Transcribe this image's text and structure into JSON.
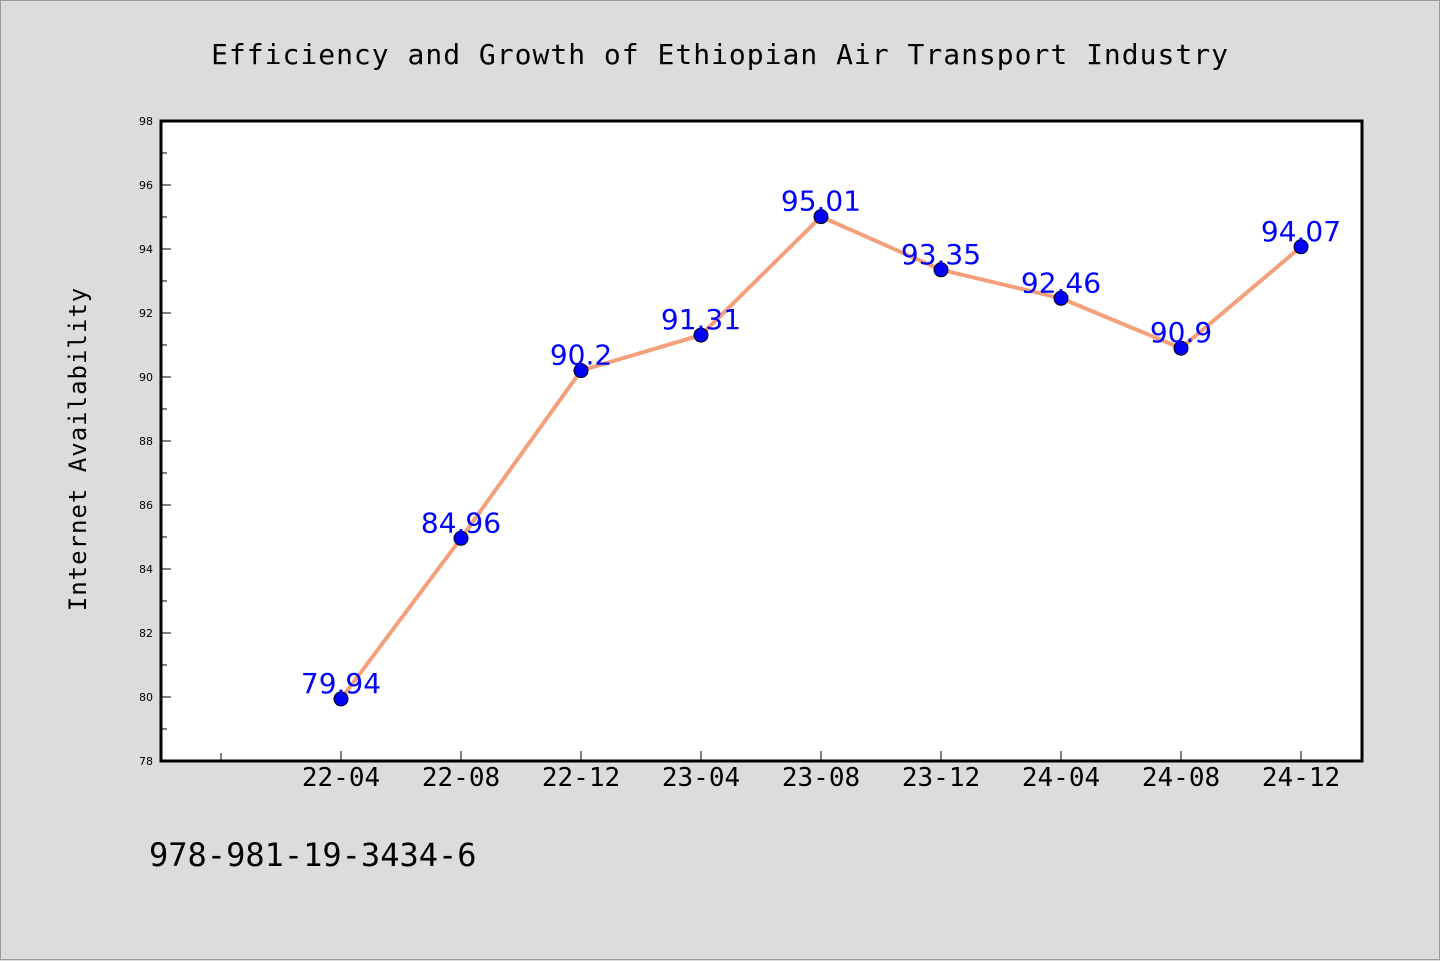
{
  "chart_data": {
    "type": "line",
    "title": "Efficiency and Growth of Ethiopian Air Transport Industry",
    "xlabel": "",
    "ylabel": "Internet Availability",
    "categories": [
      "22-04",
      "22-08",
      "22-12",
      "23-04",
      "23-08",
      "23-12",
      "24-04",
      "24-08",
      "24-12"
    ],
    "values": [
      79.94,
      84.96,
      90.2,
      91.31,
      95.01,
      93.35,
      92.46,
      90.9,
      94.07
    ],
    "data_labels": [
      "79.94",
      "84.96",
      "90.2",
      "91.31",
      "95.01",
      "93.35",
      "92.46",
      "90.9",
      "94.07"
    ],
    "ylim": [
      78,
      98
    ],
    "yticks": [
      78,
      80,
      82,
      84,
      86,
      88,
      90,
      92,
      94,
      96,
      98
    ],
    "grid": false,
    "legend": "none",
    "line_color": "#f4a07a",
    "marker_color": "#0000ff",
    "label_color": "#0000ff"
  },
  "footer": {
    "isbn": "978-981-19-3434-6"
  }
}
